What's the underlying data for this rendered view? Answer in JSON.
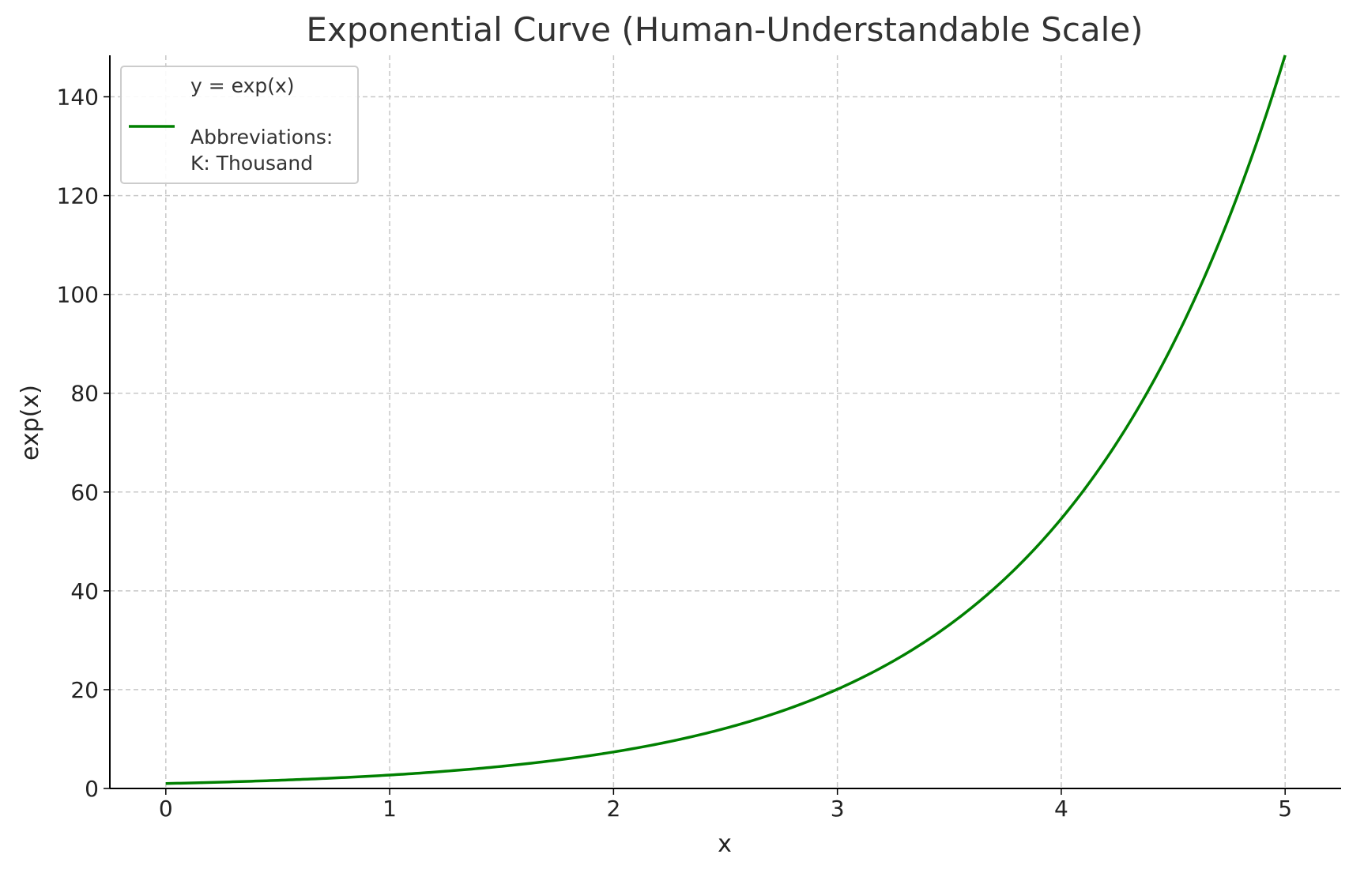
{
  "chart_data": {
    "type": "line",
    "title": "Exponential Curve (Human-Understandable Scale)",
    "xlabel": "x",
    "ylabel": "exp(x)",
    "xlim": [
      -0.25,
      5.25
    ],
    "ylim": [
      0,
      148.4
    ],
    "x_ticks": [
      0,
      1,
      2,
      3,
      4,
      5
    ],
    "y_ticks": [
      0,
      20,
      40,
      60,
      80,
      100,
      120,
      140
    ],
    "x_tick_labels": [
      "0",
      "1",
      "2",
      "3",
      "4",
      "5"
    ],
    "y_tick_labels": [
      "0",
      "20",
      "40",
      "60",
      "80",
      "100",
      "120",
      "140"
    ],
    "grid": true,
    "legend_position": "top-left",
    "legend": {
      "line1": "y = exp(x)",
      "line2": "",
      "line3": "Abbreviations:",
      "line4": "K: Thousand"
    },
    "series": [
      {
        "name": "y = exp(x)",
        "color": "#008000",
        "function": "exp",
        "x_range": [
          0,
          5
        ],
        "x": [
          0,
          0.5,
          1,
          1.5,
          2,
          2.5,
          3,
          3.5,
          4,
          4.5,
          5
        ],
        "y": [
          1.0,
          1.65,
          2.72,
          4.48,
          7.39,
          12.18,
          20.09,
          33.12,
          54.6,
          90.02,
          148.41
        ]
      }
    ]
  }
}
